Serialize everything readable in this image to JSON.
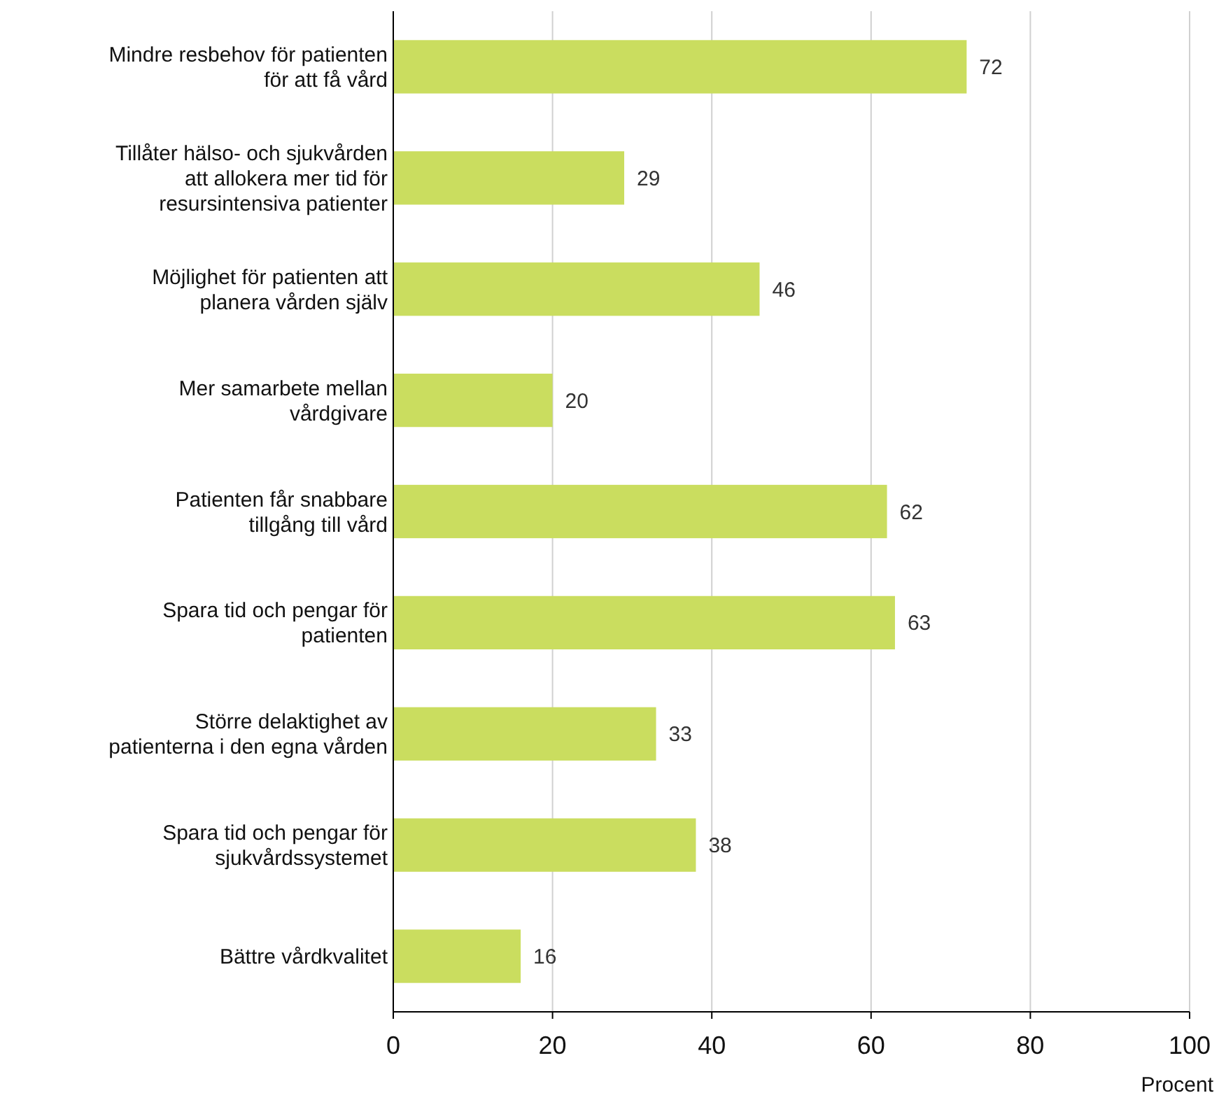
{
  "chart_data": {
    "type": "bar",
    "orientation": "horizontal",
    "xlabel": "Procent",
    "categories": [
      "Mindre resbehov för patienten för att få vård",
      "Tillåter hälso- och sjukvården att allokera mer tid för resursintensiva patienter",
      "Möjlighet för patienten att planera vården själv",
      "Mer samarbete mellan vårdgivare",
      "Patienten får snabbare tillgång till vård",
      "Spara tid och pengar för patienten",
      "Större delaktighet av patienterna i den egna vården",
      "Spara tid och pengar för sjukvårdssystemet",
      "Bättre vårdkvalitet"
    ],
    "values": [
      72,
      29,
      46,
      20,
      62,
      63,
      33,
      38,
      16
    ],
    "color": "#cadd5f",
    "xlim": [
      0,
      100
    ],
    "xticks": [
      0,
      20,
      40,
      60,
      80,
      100
    ],
    "grid": "x",
    "data_labels": true
  }
}
